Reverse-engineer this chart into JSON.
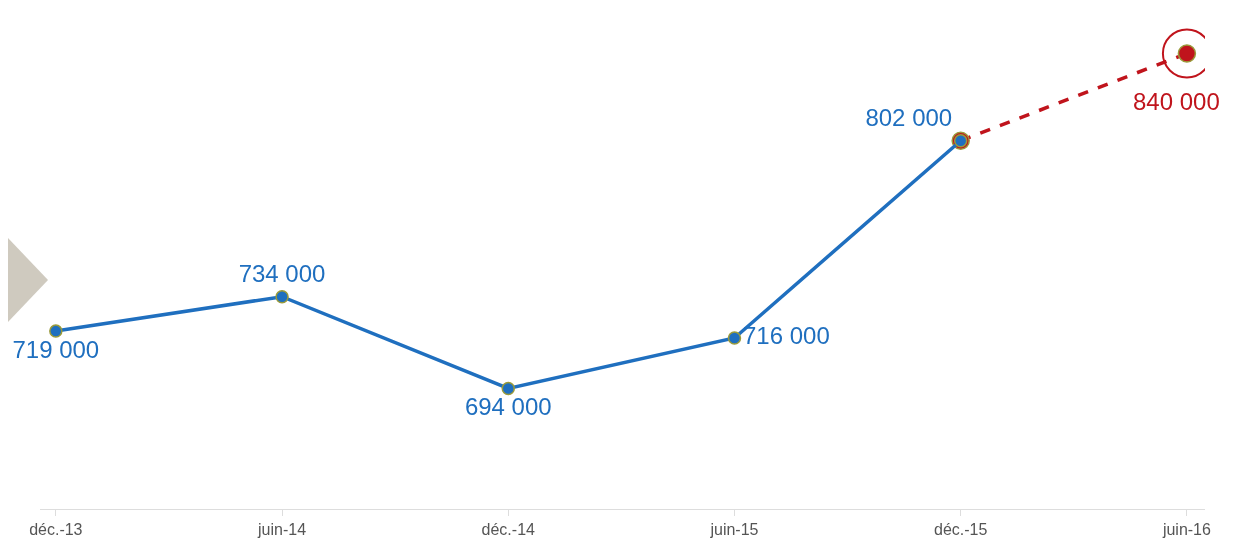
{
  "chart_data": {
    "type": "line",
    "categories": [
      "déc.-13",
      "juin-14",
      "déc.-14",
      "juin-15",
      "déc.-15",
      "juin-16"
    ],
    "series": [
      {
        "color": "#1f6fbf",
        "line_style": "solid",
        "values": [
          719000,
          734000,
          694000,
          716000,
          802000,
          null
        ],
        "value_labels": [
          "719 000",
          "734 000",
          "694 000",
          "716 000",
          "802 000",
          null
        ]
      },
      {
        "color": "#c0141c",
        "line_style": "dashed",
        "values": [
          null,
          null,
          null,
          null,
          802000,
          840000
        ],
        "value_labels": [
          null,
          null,
          null,
          null,
          null,
          "840 000"
        ]
      }
    ],
    "marker": "circle",
    "grid": false,
    "legend": false
  }
}
